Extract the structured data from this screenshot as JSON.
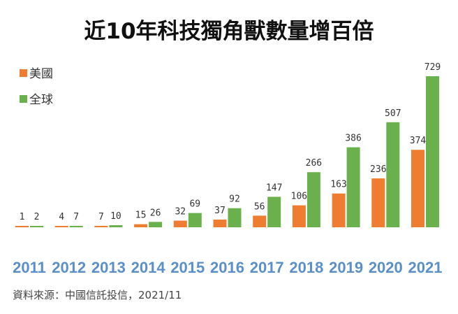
{
  "chart_data": {
    "type": "bar",
    "title": "近10年科技獨角獸數量增百倍",
    "categories": [
      "2011",
      "2012",
      "2013",
      "2014",
      "2015",
      "2016",
      "2017",
      "2018",
      "2019",
      "2020",
      "2021"
    ],
    "series": [
      {
        "name": "美國",
        "color": "#ee7d31",
        "values": [
          1,
          4,
          7,
          15,
          32,
          37,
          56,
          106,
          163,
          236,
          374
        ]
      },
      {
        "name": "全球",
        "color": "#6ab04c",
        "values": [
          2,
          7,
          10,
          26,
          69,
          92,
          147,
          266,
          386,
          507,
          729
        ]
      }
    ],
    "xlabel": "",
    "ylabel": "",
    "ylim": [
      0,
      729
    ],
    "grid": false,
    "legend_position": "top-left",
    "year_label_color": "#5b8fc7"
  },
  "source": "資料來源：中國信託投信，2021/11"
}
